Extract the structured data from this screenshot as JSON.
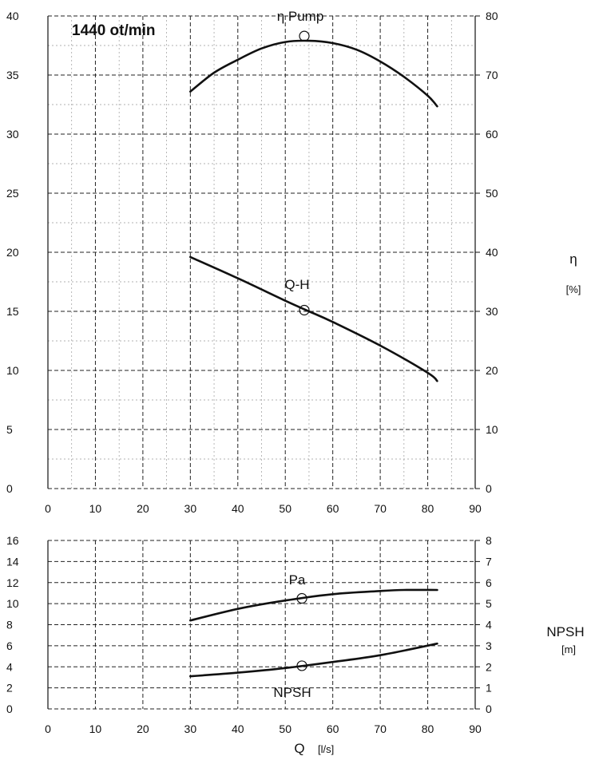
{
  "chart_data": [
    {
      "type": "line",
      "annotation": "1440 ot/min",
      "xlim": [
        0,
        90
      ],
      "ylim": [
        0,
        40
      ],
      "y2lim": [
        0,
        80
      ],
      "x_ticks": [
        "0",
        "10",
        "20",
        "30",
        "40",
        "50",
        "60",
        "70",
        "80",
        "90"
      ],
      "y_ticks": [
        "0",
        "5",
        "10",
        "15",
        "20",
        "25",
        "30",
        "35",
        "40"
      ],
      "y2_ticks": [
        "0",
        "10",
        "20",
        "30",
        "40",
        "50",
        "60",
        "70",
        "80"
      ],
      "y2label": "η",
      "y2unit": "[%]",
      "grid": true,
      "series": [
        {
          "name": "η Pump",
          "axis": "right",
          "x": [
            30,
            35,
            40,
            45,
            50,
            55,
            60,
            65,
            70,
            75,
            80,
            82
          ],
          "y": [
            67.2,
            70.4,
            72.6,
            74.5,
            75.6,
            75.8,
            75.4,
            74.3,
            72.3,
            69.7,
            66.5,
            64.7
          ],
          "marker_x": 54,
          "marker_y": 76.6
        },
        {
          "name": "Q-H",
          "axis": "left",
          "x": [
            30,
            40,
            50,
            55,
            60,
            70,
            80,
            82
          ],
          "y": [
            19.6,
            17.8,
            15.9,
            15.0,
            14.1,
            12.1,
            9.8,
            9.1
          ],
          "marker_x": 54,
          "marker_y": 15.1
        }
      ]
    },
    {
      "type": "line",
      "xlabel": "Q",
      "xunit": "[l/s]",
      "xlim": [
        0,
        90
      ],
      "ylim": [
        0,
        16
      ],
      "y2lim": [
        0,
        8
      ],
      "x_ticks": [
        "0",
        "10",
        "20",
        "30",
        "40",
        "50",
        "60",
        "70",
        "80",
        "90"
      ],
      "y_ticks": [
        "0",
        "2",
        "4",
        "6",
        "8",
        "10",
        "12",
        "14",
        "16"
      ],
      "y2_ticks": [
        "0",
        "1",
        "2",
        "3",
        "4",
        "5",
        "6",
        "7",
        "8"
      ],
      "y2label": "NPSH",
      "y2unit": "[m]",
      "grid": true,
      "series": [
        {
          "name": "Pa",
          "axis": "left",
          "x": [
            30,
            40,
            50,
            60,
            70,
            75,
            82
          ],
          "y": [
            8.4,
            9.5,
            10.3,
            10.9,
            11.2,
            11.3,
            11.3
          ],
          "marker_x": 53.5,
          "marker_y": 10.5
        },
        {
          "name": "NPSH",
          "axis": "right",
          "x": [
            30,
            40,
            50,
            60,
            70,
            82
          ],
          "y": [
            1.55,
            1.72,
            1.94,
            2.23,
            2.55,
            3.1
          ],
          "marker_x": 53.5,
          "marker_y": 2.05
        }
      ]
    }
  ]
}
